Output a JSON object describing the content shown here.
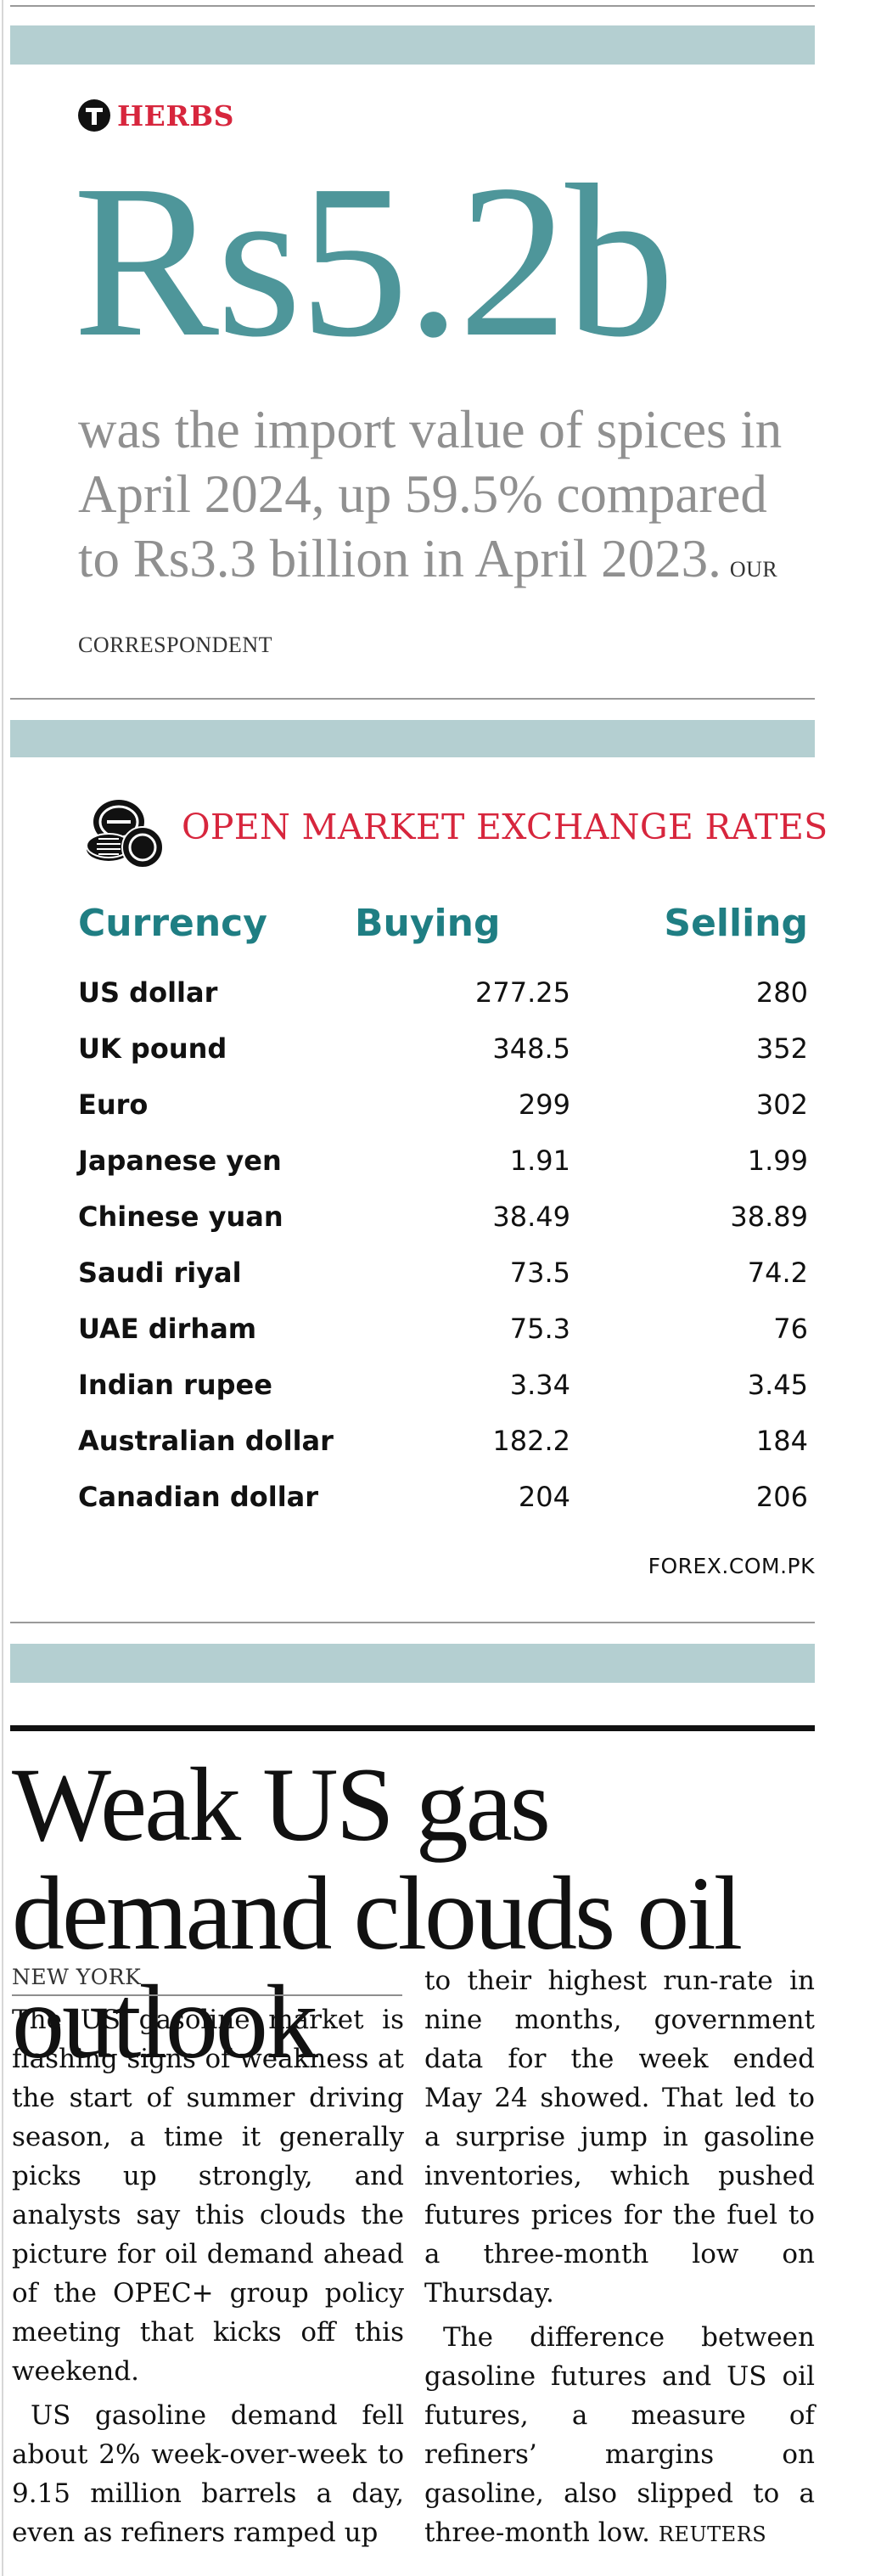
{
  "herbs": {
    "brand": "HERBS",
    "figure": "Rs5.2b",
    "description": "was the import value of spices in April 2024, up 59.5% compared to Rs3.3 billion in April 2023.",
    "credit": "OUR CORRESPONDENT",
    "colors": {
      "brand": "#d7263d",
      "figure": "#4e969a",
      "text": "#909090"
    }
  },
  "exchange": {
    "title": "OPEN MARKET EXCHANGE RATES",
    "icon": "coins-icon",
    "headers": {
      "currency": "Currency",
      "buying": "Buying",
      "selling": "Selling"
    },
    "rows": [
      {
        "currency": "US dollar",
        "buying": "277.25",
        "selling": "280"
      },
      {
        "currency": "UK pound",
        "buying": "348.5",
        "selling": "352"
      },
      {
        "currency": "Euro",
        "buying": "299",
        "selling": "302"
      },
      {
        "currency": "Japanese yen",
        "buying": "1.91",
        "selling": "1.99"
      },
      {
        "currency": "Chinese yuan",
        "buying": "38.49",
        "selling": "38.89"
      },
      {
        "currency": "Saudi riyal",
        "buying": "73.5",
        "selling": "74.2"
      },
      {
        "currency": "UAE dirham",
        "buying": "75.3",
        "selling": "76"
      },
      {
        "currency": "Indian rupee",
        "buying": "3.34",
        "selling": "3.45"
      },
      {
        "currency": "Australian dollar",
        "buying": "182.2",
        "selling": "184"
      },
      {
        "currency": "Canadian dollar",
        "buying": "204",
        "selling": "206"
      }
    ],
    "source": "FOREX.COM.PK",
    "colors": {
      "title": "#d7263d",
      "headers": "#1f7e83",
      "band": "#b4cfd1"
    }
  },
  "article": {
    "headline": "Weak US gas demand clouds oil outlook",
    "dateline": "NEW YORK",
    "col1_p1": "The US gasoline market is flashing signs of weakness at the start of summer driving season, a time it generally picks up strongly, and analysts say this clouds the picture for oil demand ahead of the OPEC+ group policy meeting that kicks off this weekend.",
    "col1_p2": "US gasoline demand fell about 2% week-over-week to 9.15 million barrels a day, even as refiners ramped up",
    "col2_p1": "to their highest run-rate in nine months, government data for the week ended May 24 showed. That led to a surprise jump in gasoline inventories, which pushed futures prices for the fuel to a three-month low on Thursday.",
    "col2_p2": "The difference between gasoline futures and US oil futures, a measure of refiners’ margins on gasoline, also slipped to a three-month low.",
    "credit": "REUTERS"
  }
}
